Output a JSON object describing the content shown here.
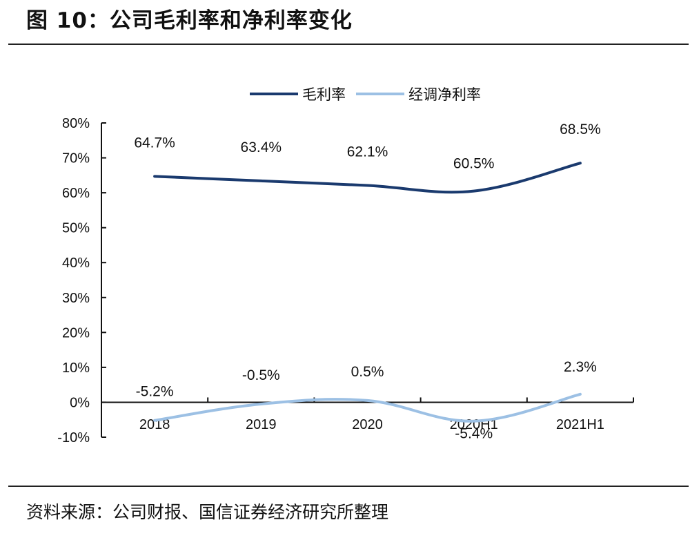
{
  "figure": {
    "title": "图 10：公司毛利率和净利率变化",
    "source": "资料来源：公司财报、国信证券经济研究所整理"
  },
  "chart_data": {
    "type": "line",
    "categories": [
      "2018",
      "2019",
      "2020",
      "2020H1",
      "2021H1"
    ],
    "series": [
      {
        "name": "毛利率",
        "values": [
          64.7,
          63.4,
          62.1,
          60.5,
          68.5
        ],
        "labels": [
          "64.7%",
          "63.4%",
          "62.1%",
          "60.5%",
          "68.5%"
        ],
        "color": "#1a3a6e"
      },
      {
        "name": "经调净利率",
        "values": [
          -5.2,
          -0.5,
          0.5,
          -5.4,
          2.3
        ],
        "labels": [
          "-5.2%",
          "-0.5%",
          "0.5%",
          "-5.4%",
          "2.3%"
        ],
        "color": "#9cc0e4"
      }
    ],
    "ylim": [
      -10,
      80
    ],
    "yticks": [
      80,
      70,
      60,
      50,
      40,
      30,
      20,
      10,
      0,
      -10
    ],
    "ytick_labels": [
      "80%",
      "70%",
      "60%",
      "50%",
      "40%",
      "30%",
      "20%",
      "10%",
      "0%",
      "-10%"
    ],
    "xlabel": "",
    "ylabel": "",
    "legend": "top-center",
    "grid": false
  }
}
